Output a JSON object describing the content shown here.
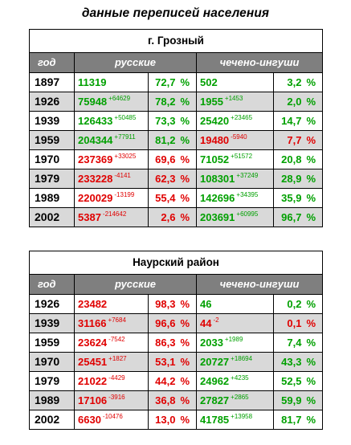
{
  "title": "данные переписей населения",
  "headers": {
    "year": "год",
    "russians": "русские",
    "chechen": "чечено-ингуши"
  },
  "tables": [
    {
      "caption": "г. Грозный",
      "rows": [
        {
          "year": "1897",
          "ru_val": "11319",
          "ru_delta": "",
          "ru_pct": "72,7",
          "ch_val": "502",
          "ch_delta": "",
          "ch_pct": "3,2",
          "ru_neg": false,
          "ch_neg": false
        },
        {
          "year": "1926",
          "ru_val": "75948",
          "ru_delta": "+64629",
          "ru_pct": "78,2",
          "ch_val": "1955",
          "ch_delta": "+1453",
          "ch_pct": "2,0",
          "ru_neg": false,
          "ch_neg": false
        },
        {
          "year": "1939",
          "ru_val": "126433",
          "ru_delta": "+50485",
          "ru_pct": "73,3",
          "ch_val": "25420",
          "ch_delta": "+23465",
          "ch_pct": "14,7",
          "ru_neg": false,
          "ch_neg": false
        },
        {
          "year": "1959",
          "ru_val": "204344",
          "ru_delta": "+77911",
          "ru_pct": "81,2",
          "ch_val": "19480",
          "ch_delta": "-5940",
          "ch_pct": "7,7",
          "ru_neg": false,
          "ch_neg": true
        },
        {
          "year": "1970",
          "ru_val": "237369",
          "ru_delta": "+33025",
          "ru_pct": "69,6",
          "ch_val": "71052",
          "ch_delta": "+51572",
          "ch_pct": "20,8",
          "ru_neg": true,
          "ch_neg": false
        },
        {
          "year": "1979",
          "ru_val": "233228",
          "ru_delta": "-4141",
          "ru_pct": "62,3",
          "ch_val": "108301",
          "ch_delta": "+37249",
          "ch_pct": "28,9",
          "ru_neg": true,
          "ch_neg": false
        },
        {
          "year": "1989",
          "ru_val": "220029",
          "ru_delta": "-13199",
          "ru_pct": "55,4",
          "ch_val": "142696",
          "ch_delta": "+34395",
          "ch_pct": "35,9",
          "ru_neg": true,
          "ch_neg": false
        },
        {
          "year": "2002",
          "ru_val": "5387",
          "ru_delta": "-214642",
          "ru_pct": "2,6",
          "ch_val": "203691",
          "ch_delta": "+60995",
          "ch_pct": "96,7",
          "ru_neg": true,
          "ch_neg": false
        }
      ]
    },
    {
      "caption": "Наурский район",
      "rows": [
        {
          "year": "1926",
          "ru_val": "23482",
          "ru_delta": "",
          "ru_pct": "98,3",
          "ch_val": "46",
          "ch_delta": "",
          "ch_pct": "0,2",
          "ru_neg": true,
          "ch_neg": false
        },
        {
          "year": "1939",
          "ru_val": "31166",
          "ru_delta": "+7684",
          "ru_pct": "96,6",
          "ch_val": "44",
          "ch_delta": "-2",
          "ch_pct": "0,1",
          "ru_neg": true,
          "ch_neg": true
        },
        {
          "year": "1959",
          "ru_val": "23624",
          "ru_delta": "-7542",
          "ru_pct": "86,3",
          "ch_val": "2033",
          "ch_delta": "+1989",
          "ch_pct": "7,4",
          "ru_neg": true,
          "ch_neg": false
        },
        {
          "year": "1970",
          "ru_val": "25451",
          "ru_delta": "+1827",
          "ru_pct": "53,1",
          "ch_val": "20727",
          "ch_delta": "+18694",
          "ch_pct": "43,3",
          "ru_neg": true,
          "ch_neg": false
        },
        {
          "year": "1979",
          "ru_val": "21022",
          "ru_delta": "-4429",
          "ru_pct": "44,2",
          "ch_val": "24962",
          "ch_delta": "+4235",
          "ch_pct": "52,5",
          "ru_neg": true,
          "ch_neg": false
        },
        {
          "year": "1989",
          "ru_val": "17106",
          "ru_delta": "-3916",
          "ru_pct": "36,8",
          "ch_val": "27827",
          "ch_delta": "+2865",
          "ch_pct": "59,9",
          "ru_neg": true,
          "ch_neg": false
        },
        {
          "year": "2002",
          "ru_val": "6630",
          "ru_delta": "-10476",
          "ru_pct": "13,0",
          "ch_val": "41785",
          "ch_delta": "+13958",
          "ch_pct": "81,7",
          "ru_neg": true,
          "ch_neg": false
        }
      ]
    }
  ],
  "percent_sign": "%",
  "colors": {
    "positive": "#00a000",
    "negative": "#e00000",
    "header_bg": "#7f7f7f",
    "shade_bg": "#d9d9d9"
  }
}
